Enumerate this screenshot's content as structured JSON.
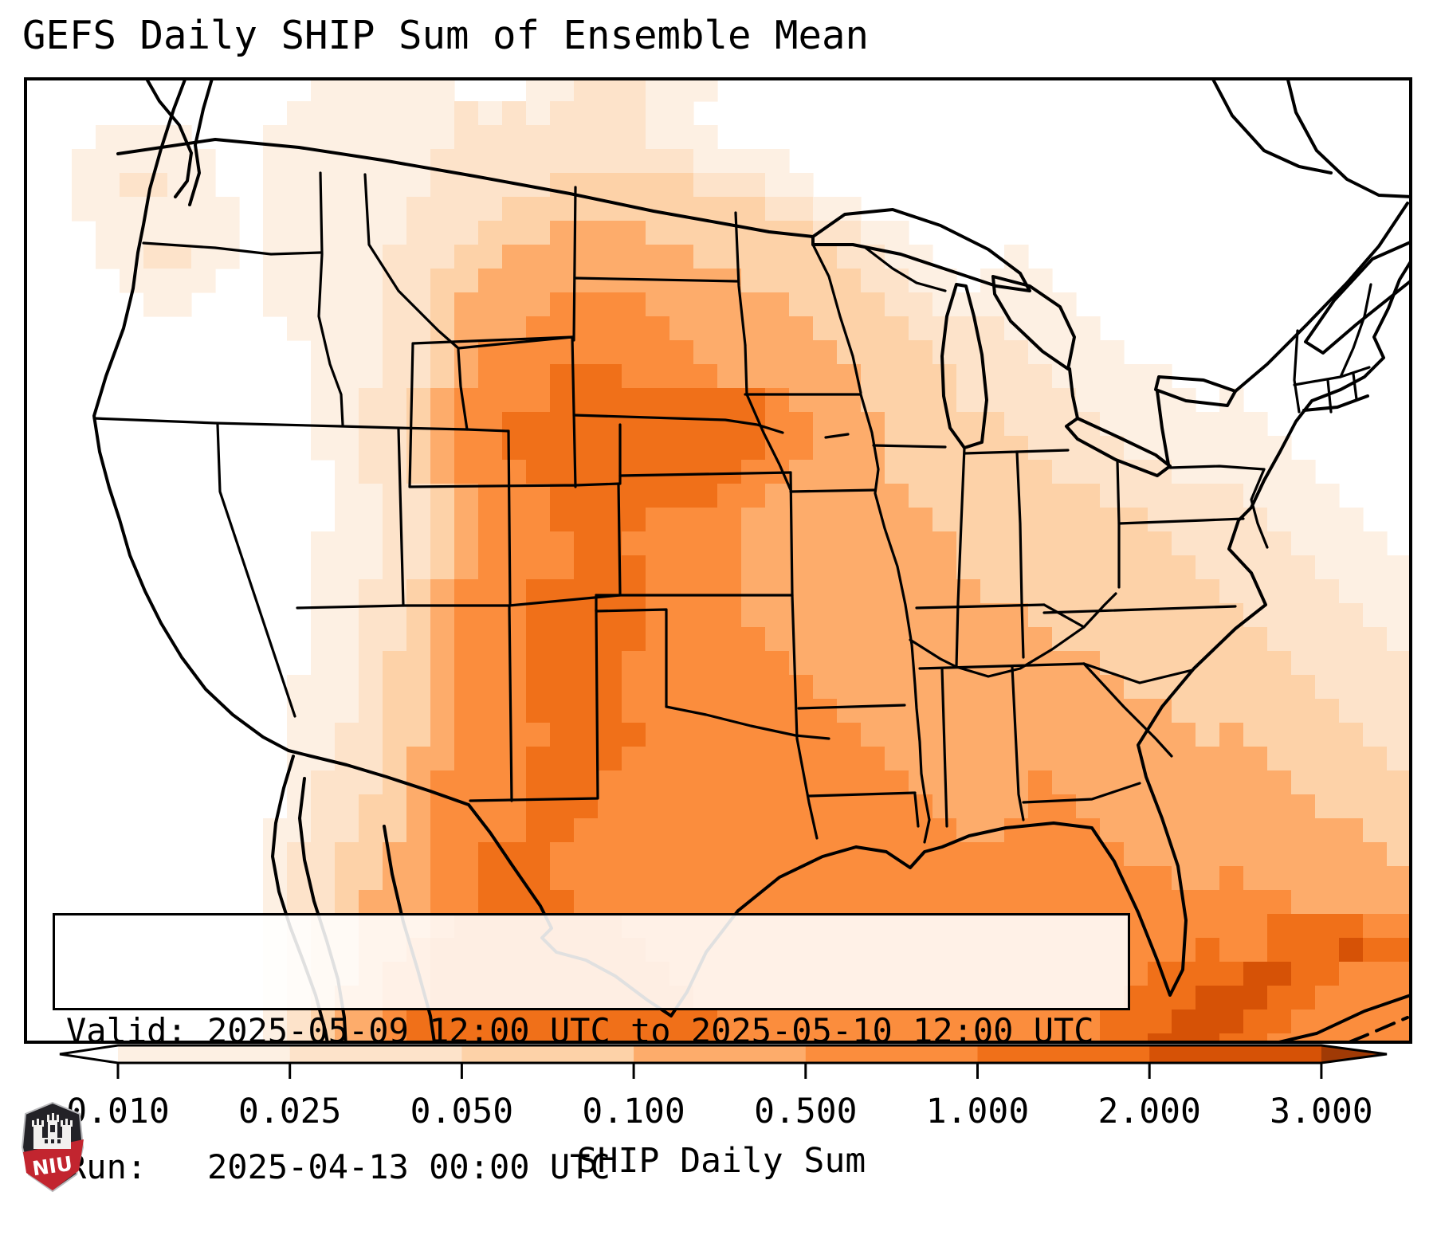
{
  "title": "GEFS Daily SHIP Sum of Ensemble Mean",
  "info_box": {
    "valid_line": "Valid: 2025-05-09 12:00 UTC to 2025-05-10 12:00 UTC",
    "run_line": "Run:   2025-04-13 00:00 UTC"
  },
  "colorbar": {
    "label": "SHIP Daily Sum",
    "tick_labels": [
      "0.010",
      "0.025",
      "0.050",
      "0.100",
      "0.500",
      "1.000",
      "2.000",
      "3.000"
    ],
    "under_color": "#ffffff",
    "segment_colors": [
      "#fdf0e3",
      "#fde3ca",
      "#fdd2a8",
      "#fdac6b",
      "#fb8d3d",
      "#f07019",
      "#d65206"
    ],
    "over_color": "#a03a05"
  },
  "logo": {
    "text": "NIU",
    "shield_dark": "#232227",
    "shield_red": "#c2252f"
  },
  "map": {
    "outline_color": "#000000",
    "palette": [
      "#ffffff",
      "#fdf0e3",
      "#fde3ca",
      "#fdd2a8",
      "#fdac6b",
      "#fb8d3d",
      "#f07019",
      "#d65206",
      "#a03a05"
    ],
    "cell_size": 30,
    "grid_rows": [
      "0000000000001111110001122211100000000000000000000000000000",
      "0000000000011111112121222211000000000000000000000000000000",
      "0001111000111111112222222211100000000000000000000000000000",
      "0011111100111111122222222222111100000000000000000000000000",
      "0011221100111111122222333333222110000000000000000000000000",
      "0011111110111111222233333333333221100000000000000000000000",
      "0001111110111111222333444433333332211000000000000000000000",
      "0001122110111112223344444444333333221100010000000000000000",
      "0000111100111112233444444444443333322110111000000000000000",
      "0000011000111112234444555544444433332211111100000000000000",
      "0000000000011112234445555554444443333222211110000000000000",
      "0000000000001112234555555555444444333322221111000000000000",
      "0000000000001112234555666555544444433332222111110000000000",
      "0000000000001122345555666666666544433332222211111010000000",
      "0000000000001122345566666666666554443333322221111111000000",
      "0000000000001122345566666666666554443333332222111111100000",
      "0000000000000122345556666666665544443333333222221111110000",
      "0000000000000112234555666666655444444333333332222221111000",
      "0000000000000112234555666655554444444433333333322222111100",
      "0000000000001112234555566555554444444443333333332222211110",
      "0000000000001112234555566655554444444443333333333222221111",
      "0000000000001122345556666655554444444444333333333322222111",
      "0000000000001122345556666655554444444444443333333332222211",
      "0000000000001122345556666655555444444444444333333333222221",
      "0000000000001123345556666555555544444444444443333333322222",
      "0000000000011123345556666555555554444444444444333333332222",
      "0000000000011123345556666555555555444444444444443333333222",
      "0000000000011223345555666655555555544444444444444343333322",
      "0000000000011223445556666555555555554444444444444444333332",
      "0000000000012223455556665555555555555444445444444444433333",
      "0000000000012233455556665555555555555544445544444444443333",
      "0000000000112233455556655555555555555554455554444444444433",
      "0000000000122334455666555555555555555555555555444444444443",
      "0000000000122334455666555555555555555555555555554454444444",
      "0000000000122344455666655555555555555555555555555555544444",
      "0000000000123344456666666555555555555555555555555555666655",
      "0000000000123344566666666655555555555555555555555655666766",
      "0000000000123345566666666665555555555555555555566667766555",
      "0000000000123445566666666666555555555555555555666777665555",
      "0000000000123445666666666666655555555555555556667776655555",
      "0000000000123445666666666666655555555555555556677766555555"
    ]
  }
}
